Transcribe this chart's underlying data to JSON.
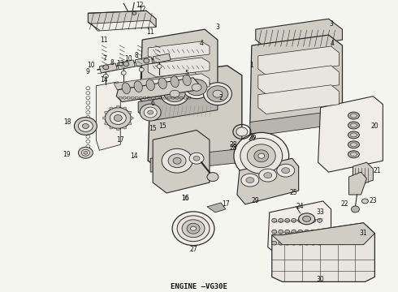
{
  "title": "ENGINE –VG30E",
  "title_fontsize": 6.5,
  "title_fontfamily": "monospace",
  "title_fontweight": "bold",
  "background_color": "#f5f5f0",
  "fig_width": 4.9,
  "fig_height": 3.6,
  "dpi": 100,
  "line_color": "#2a2a2a",
  "fill_light": "#e8e5de",
  "fill_mid": "#d0cdc4",
  "fill_dark": "#b8b5ae",
  "fill_very_light": "#f0ede6"
}
